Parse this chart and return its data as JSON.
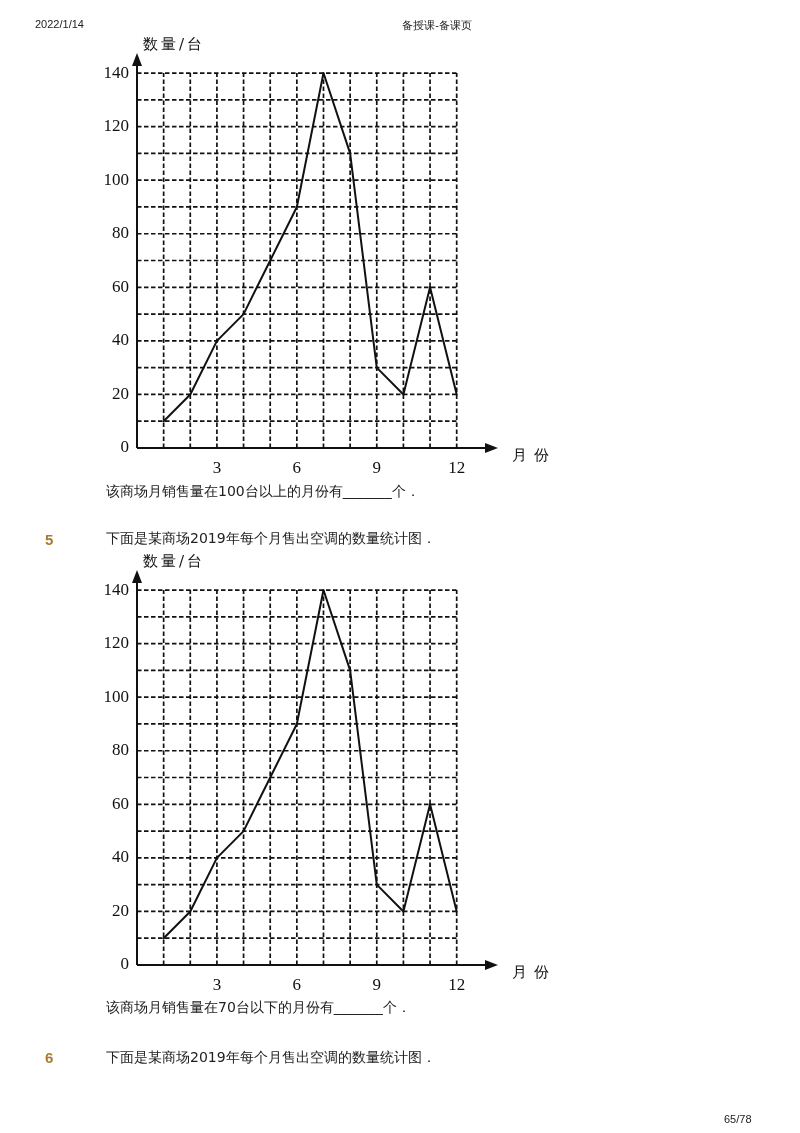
{
  "chart_data": [
    {
      "type": "line",
      "x": [
        1,
        2,
        3,
        4,
        5,
        6,
        7,
        8,
        9,
        10,
        11,
        12
      ],
      "values": [
        10,
        20,
        40,
        50,
        70,
        90,
        140,
        110,
        30,
        20,
        60,
        20
      ],
      "color": "#111111",
      "xlabel": "月份",
      "ylabel": "数量/台",
      "xlim": [
        0,
        13.1
      ],
      "ylim": [
        0,
        143
      ],
      "xticks": [
        {
          "value": 1,
          "label": null
        },
        {
          "value": 2,
          "label": null
        },
        3,
        {
          "value": 4,
          "label": null
        },
        {
          "value": 5,
          "label": null
        },
        6,
        {
          "value": 7,
          "label": null
        },
        {
          "value": 8,
          "label": null
        },
        9,
        {
          "value": 10,
          "label": null
        },
        {
          "value": 11,
          "label": null
        },
        12
      ],
      "yticks": [
        0,
        {
          "value": 10,
          "label": null
        },
        20,
        {
          "value": 30,
          "label": null
        },
        40,
        {
          "value": 50,
          "label": null
        },
        60,
        {
          "value": 70,
          "label": null
        },
        80,
        {
          "value": 90,
          "label": null
        },
        100,
        {
          "value": 110,
          "label": null
        },
        120,
        {
          "value": 130,
          "label": null
        },
        140
      ],
      "grid": true,
      "marker": "none",
      "annotations": [
        "2022/1/14",
        "备授课-备课页",
        "该商场月销售量在100台以上的月份有_______个．"
      ]
    },
    {
      "type": "line",
      "title": "下面是某商场2019年每个月售出空调的数量统计图．",
      "x": [
        1,
        2,
        3,
        4,
        5,
        6,
        7,
        8,
        9,
        10,
        11,
        12
      ],
      "values": [
        10,
        20,
        40,
        50,
        70,
        90,
        140,
        110,
        30,
        20,
        60,
        20
      ],
      "color": "#111111",
      "xlabel": "月份",
      "ylabel": "数量/台",
      "xlim": [
        0,
        13.1
      ],
      "ylim": [
        0,
        143
      ],
      "xticks": [
        {
          "value": 1,
          "label": null
        },
        {
          "value": 2,
          "label": null
        },
        3,
        {
          "value": 4,
          "label": null
        },
        {
          "value": 5,
          "label": null
        },
        6,
        {
          "value": 7,
          "label": null
        },
        {
          "value": 8,
          "label": null
        },
        9,
        {
          "value": 10,
          "label": null
        },
        {
          "value": 11,
          "label": null
        },
        12
      ],
      "yticks": [
        0,
        {
          "value": 10,
          "label": null
        },
        20,
        {
          "value": 30,
          "label": null
        },
        40,
        {
          "value": 50,
          "label": null
        },
        60,
        {
          "value": 70,
          "label": null
        },
        80,
        {
          "value": 90,
          "label": null
        },
        100,
        {
          "value": 110,
          "label": null
        },
        120,
        {
          "value": 130,
          "label": null
        },
        140
      ],
      "grid": true,
      "marker": "none",
      "annotations": [
        "5",
        "该商场月销售量在70台以下的月份有_______个．",
        "6",
        "下面是某商场2019年每个月售出空调的数量统计图．",
        "65/78"
      ]
    }
  ]
}
